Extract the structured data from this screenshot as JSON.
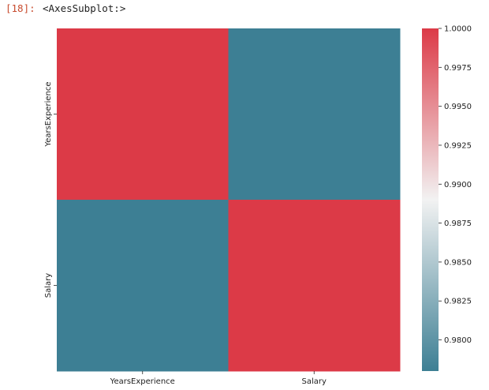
{
  "cell": {
    "prompt": "[18]:",
    "output_text": "<AxesSubplot:>"
  },
  "chart_data": {
    "type": "heatmap",
    "title": "",
    "xlabel": "",
    "ylabel": "",
    "x_categories": [
      "YearsExperience",
      "Salary"
    ],
    "y_categories": [
      "YearsExperience",
      "Salary"
    ],
    "values": [
      [
        1.0,
        0.978
      ],
      [
        0.978,
        1.0
      ]
    ],
    "colorbar": {
      "range": [
        0.978,
        1.0
      ],
      "ticks": [
        "0.9800",
        "0.9825",
        "0.9850",
        "0.9875",
        "0.9900",
        "0.9925",
        "0.9950",
        "0.9975",
        "1.0000"
      ],
      "colormap": "diverging",
      "colors": {
        "low": "#3d7f94",
        "mid": "#f2f2f2",
        "high": "#dc3a47"
      }
    },
    "grid": false
  }
}
